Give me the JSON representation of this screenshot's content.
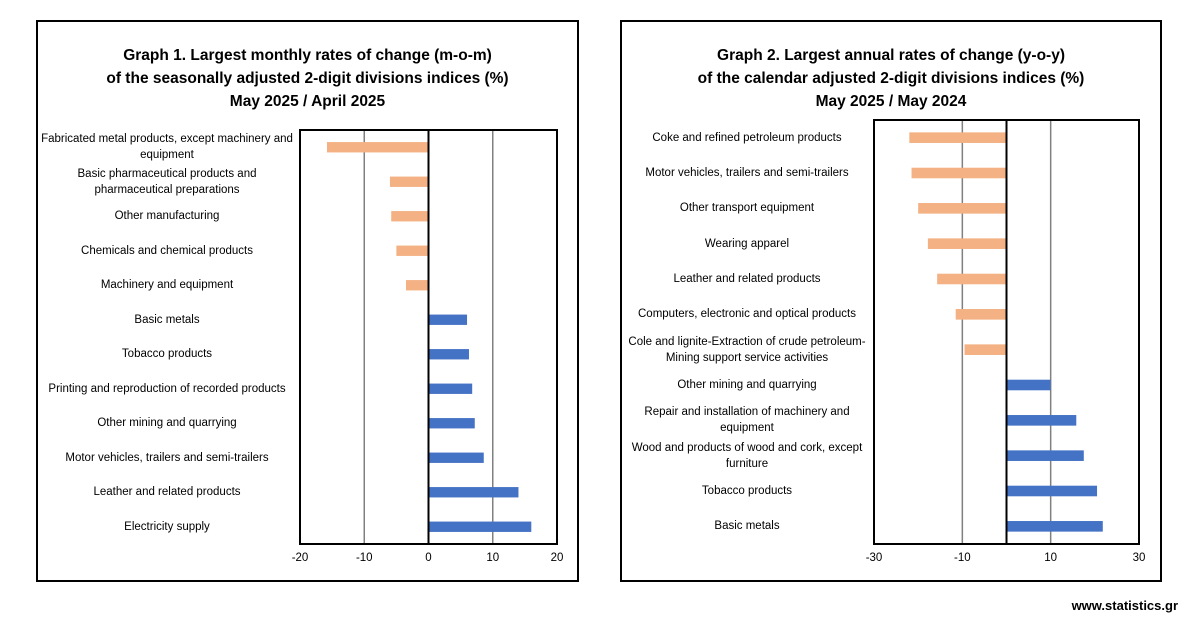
{
  "footer": {
    "site": "www.statistics.gr"
  },
  "colors": {
    "negative": "#f4b183",
    "positive": "#4472c4",
    "grid": "#808080"
  },
  "chart_data": [
    {
      "type": "bar",
      "orientation": "horizontal",
      "title_lines": [
        "Graph 1. Largest monthly rates of change (m-o-m)",
        "of the seasonally adjusted 2-digit divisions indices (%)",
        "May 2025 / April 2025"
      ],
      "categories": [
        "Fabricated metal products, except machinery and equipment",
        "Basic pharmaceutical products and pharmaceutical preparations",
        "Other manufacturing",
        "Chemicals and chemical products",
        "Machinery and equipment",
        "Basic metals",
        "Tobacco products",
        "Printing and reproduction of recorded products",
        "Other mining and quarrying",
        "Motor vehicles, trailers and semi-trailers",
        "Leather and related products",
        "Electricity supply"
      ],
      "values": [
        -15.8,
        -6.0,
        -5.8,
        -5.0,
        -3.5,
        6.0,
        6.3,
        6.8,
        7.2,
        8.6,
        14.0,
        16.0
      ],
      "xlim": [
        -20,
        20
      ],
      "xticks": [
        -20,
        -10,
        0,
        10,
        20
      ],
      "gridlines": [
        -10,
        10
      ],
      "grid": true,
      "legend": "none"
    },
    {
      "type": "bar",
      "orientation": "horizontal",
      "title_lines": [
        "Graph 2. Largest annual rates of change (y-o-y)",
        "of the calendar adjusted 2-digit divisions indices (%)",
        "May 2025 / May 2024"
      ],
      "categories": [
        "Coke and refined petroleum products",
        "Motor vehicles, trailers and semi-trailers",
        "Other transport equipment",
        "Wearing apparel",
        "Leather and related products",
        "Computers, electronic and optical products",
        "Cole and lignite-Extraction of crude petroleum-Mining support service activities",
        "Other mining and quarrying",
        "Repair and installation of machinery and equipment",
        "Wood and products of wood and cork, except furniture",
        "Tobacco products",
        "Basic metals"
      ],
      "values": [
        -22.0,
        -21.5,
        -20.0,
        -17.8,
        -15.7,
        -11.5,
        -9.5,
        10.0,
        15.8,
        17.5,
        20.5,
        21.8
      ],
      "xlim": [
        -30,
        30
      ],
      "xticks": [
        -30,
        -10,
        10,
        30
      ],
      "gridlines": [
        -10,
        10
      ],
      "grid": true,
      "legend": "none"
    }
  ]
}
